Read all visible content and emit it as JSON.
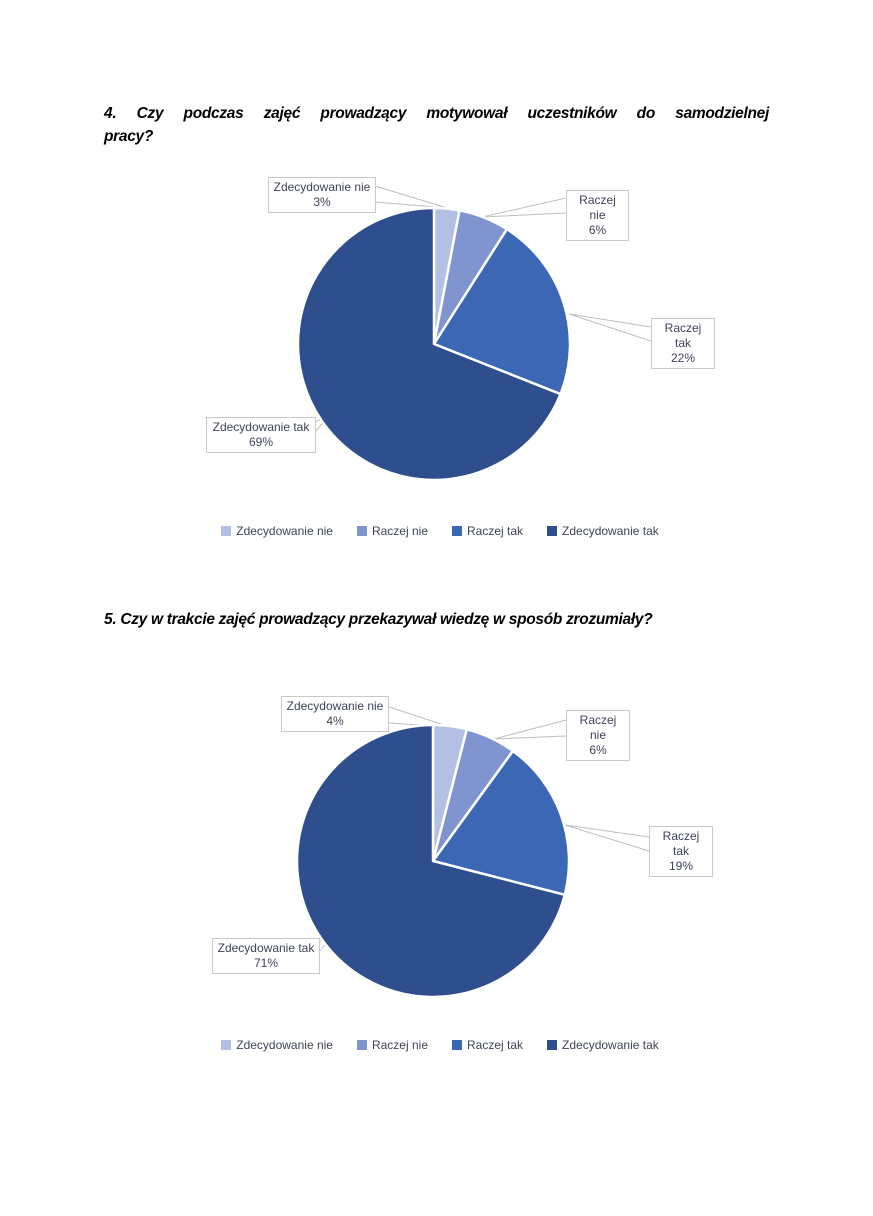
{
  "document": {
    "background": "#ffffff",
    "label_text_color": "#3f4458",
    "callout_border_color": "#c9c9c9",
    "leader_line_color": "#bfbfbf"
  },
  "chart_data": [
    {
      "type": "pie",
      "title": "4. Czy podczas zajęć prowadzący motywował uczestników do samodzielnej pracy?",
      "title_lines": [
        "4. Czy podczas zajęć prowadzący motywował uczestników do samodzielnej",
        "pracy?"
      ],
      "categories": [
        "Zdecydowanie nie",
        "Raczej nie",
        "Raczej tak",
        "Zdecydowanie tak"
      ],
      "values": [
        3,
        6,
        22,
        69
      ],
      "value_labels": [
        "3%",
        "6%",
        "22%",
        "69%"
      ],
      "colors": [
        "#b3c0e4",
        "#8095cf",
        "#3c67b4",
        "#2f4e8d"
      ],
      "start_angle": 0,
      "direction": "clockwise",
      "legend_position": "bottom",
      "legend_entries": [
        "Zdecydowanie nie",
        "Raczej nie",
        "Raczej tak",
        "Zdecydowanie tak"
      ]
    },
    {
      "type": "pie",
      "title": "5. Czy w trakcie zajęć prowadzący przekazywał wiedzę w sposób zrozumiały?",
      "title_lines": [
        "5. Czy w trakcie zajęć prowadzący przekazywał wiedzę w sposób zrozumiały?"
      ],
      "categories": [
        "Zdecydowanie nie",
        "Raczej nie",
        "Raczej tak",
        "Zdecydowanie tak"
      ],
      "values": [
        4,
        6,
        19,
        71
      ],
      "value_labels": [
        "4%",
        "6%",
        "19%",
        "71%"
      ],
      "colors": [
        "#b3c0e4",
        "#8095cf",
        "#3c67b4",
        "#2f4e8d"
      ],
      "start_angle": 0,
      "direction": "clockwise",
      "legend_position": "bottom",
      "legend_entries": [
        "Zdecydowanie nie",
        "Raczej nie",
        "Raczej tak",
        "Zdecydowanie tak"
      ]
    }
  ]
}
